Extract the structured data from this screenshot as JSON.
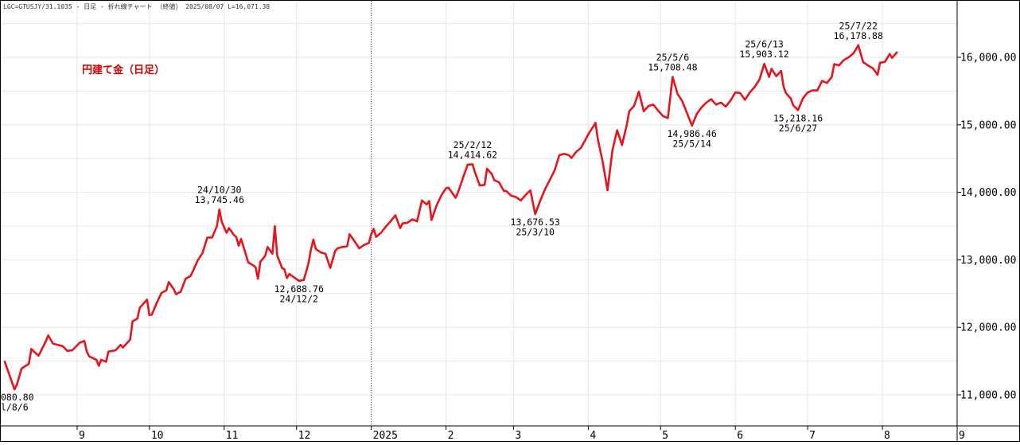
{
  "header": "LGC=GTUSJY/31.1035 - 日足 - 折れ線チャート （終値） 2025/08/07 L=16,071.38",
  "caption": "円建て金（日足）",
  "colors": {
    "line": "#e8141b",
    "caption": "#cc0000",
    "grid": "#e6e6e6",
    "axis": "#000000",
    "divider": "#3a3a3a"
  },
  "chart_data": {
    "type": "line",
    "title": "円建て金（日足）",
    "xlabel": "",
    "ylabel": "",
    "ylim": [
      10700,
      16750
    ],
    "grid": true,
    "y_ticks": [
      11000,
      12000,
      13000,
      14000,
      15000,
      16000
    ],
    "y_tick_labels": [
      "11,000.00",
      "12,000.00",
      "13,000.00",
      "14,000.00",
      "15,000.00",
      "16,000.00"
    ],
    "x_ticks": [
      {
        "label": "9",
        "date": "2024-09-01"
      },
      {
        "label": "10",
        "date": "2024-10-01"
      },
      {
        "label": "11",
        "date": "2024-11-01"
      },
      {
        "label": "12",
        "date": "2024-12-01"
      },
      {
        "label": "2025",
        "date": "2025-01-01"
      },
      {
        "label": "2",
        "date": "2025-02-01"
      },
      {
        "label": "3",
        "date": "2025-03-01"
      },
      {
        "label": "4",
        "date": "2025-04-01"
      },
      {
        "label": "5",
        "date": "2025-05-01"
      },
      {
        "label": "6",
        "date": "2025-06-01"
      },
      {
        "label": "7",
        "date": "2025-07-01"
      },
      {
        "label": "8",
        "date": "2025-08-01"
      },
      {
        "label": "9",
        "date": "2025-09-01"
      }
    ],
    "series": [
      {
        "values": [
          [
            "2024-08-02",
            11490
          ],
          [
            "2024-08-06",
            11080.8
          ],
          [
            "2024-08-07",
            11150
          ],
          [
            "2024-08-09",
            11390
          ],
          [
            "2024-08-12",
            11460
          ],
          [
            "2024-08-13",
            11680
          ],
          [
            "2024-08-15",
            11610
          ],
          [
            "2024-08-16",
            11580
          ],
          [
            "2024-08-19",
            11790
          ],
          [
            "2024-08-20",
            11880
          ],
          [
            "2024-08-22",
            11760
          ],
          [
            "2024-08-26",
            11720
          ],
          [
            "2024-08-28",
            11650
          ],
          [
            "2024-08-30",
            11660
          ],
          [
            "2024-09-02",
            11770
          ],
          [
            "2024-09-04",
            11800
          ],
          [
            "2024-09-05",
            11640
          ],
          [
            "2024-09-06",
            11570
          ],
          [
            "2024-09-09",
            11520
          ],
          [
            "2024-09-10",
            11430
          ],
          [
            "2024-09-11",
            11520
          ],
          [
            "2024-09-13",
            11490
          ],
          [
            "2024-09-14",
            11640
          ],
          [
            "2024-09-17",
            11660
          ],
          [
            "2024-09-19",
            11740
          ],
          [
            "2024-09-20",
            11700
          ],
          [
            "2024-09-23",
            11820
          ],
          [
            "2024-09-24",
            12090
          ],
          [
            "2024-09-26",
            12130
          ],
          [
            "2024-09-27",
            12290
          ],
          [
            "2024-09-30",
            12410
          ],
          [
            "2024-10-01",
            12180
          ],
          [
            "2024-10-02",
            12190
          ],
          [
            "2024-10-04",
            12360
          ],
          [
            "2024-10-06",
            12510
          ],
          [
            "2024-10-08",
            12550
          ],
          [
            "2024-10-09",
            12670
          ],
          [
            "2024-10-11",
            12570
          ],
          [
            "2024-10-12",
            12490
          ],
          [
            "2024-10-14",
            12530
          ],
          [
            "2024-10-16",
            12720
          ],
          [
            "2024-10-18",
            12760
          ],
          [
            "2024-10-19",
            12830
          ],
          [
            "2024-10-21",
            12990
          ],
          [
            "2024-10-23",
            13100
          ],
          [
            "2024-10-25",
            13330
          ],
          [
            "2024-10-27",
            13330
          ],
          [
            "2024-10-29",
            13500
          ],
          [
            "2024-10-30",
            13745.46
          ],
          [
            "2024-10-31",
            13560
          ],
          [
            "2024-11-02",
            13400
          ],
          [
            "2024-11-03",
            13470
          ],
          [
            "2024-11-05",
            13370
          ],
          [
            "2024-11-06",
            13340
          ],
          [
            "2024-11-07",
            13210
          ],
          [
            "2024-11-08",
            13310
          ],
          [
            "2024-11-11",
            12960
          ],
          [
            "2024-11-13",
            12920
          ],
          [
            "2024-11-14",
            12890
          ],
          [
            "2024-11-15",
            12720
          ],
          [
            "2024-11-16",
            12970
          ],
          [
            "2024-11-18",
            13060
          ],
          [
            "2024-11-19",
            13190
          ],
          [
            "2024-11-21",
            13090
          ],
          [
            "2024-11-22",
            13500
          ],
          [
            "2024-11-23",
            13060
          ],
          [
            "2024-11-25",
            12880
          ],
          [
            "2024-11-26",
            12860
          ],
          [
            "2024-11-27",
            12730
          ],
          [
            "2024-11-28",
            12790
          ],
          [
            "2024-12-02",
            12688.76
          ],
          [
            "2024-12-04",
            12700
          ],
          [
            "2024-12-06",
            12950
          ],
          [
            "2024-12-07",
            13160
          ],
          [
            "2024-12-08",
            13300
          ],
          [
            "2024-12-09",
            13160
          ],
          [
            "2024-12-11",
            13110
          ],
          [
            "2024-12-13",
            13090
          ],
          [
            "2024-12-15",
            12880
          ],
          [
            "2024-12-17",
            13130
          ],
          [
            "2024-12-18",
            13170
          ],
          [
            "2024-12-20",
            13190
          ],
          [
            "2024-12-22",
            13200
          ],
          [
            "2024-12-23",
            13380
          ],
          [
            "2024-12-25",
            13280
          ],
          [
            "2024-12-27",
            13170
          ],
          [
            "2024-12-29",
            13220
          ],
          [
            "2024-12-31",
            13250
          ],
          [
            "2025-01-01",
            13380
          ],
          [
            "2025-01-02",
            13460
          ],
          [
            "2025-01-03",
            13340
          ],
          [
            "2025-01-05",
            13400
          ],
          [
            "2025-01-07",
            13490
          ],
          [
            "2025-01-09",
            13570
          ],
          [
            "2025-01-11",
            13660
          ],
          [
            "2025-01-13",
            13470
          ],
          [
            "2025-01-14",
            13540
          ],
          [
            "2025-01-16",
            13550
          ],
          [
            "2025-01-18",
            13600
          ],
          [
            "2025-01-20",
            13570
          ],
          [
            "2025-01-22",
            13880
          ],
          [
            "2025-01-24",
            13820
          ],
          [
            "2025-01-25",
            13870
          ],
          [
            "2025-01-26",
            13590
          ],
          [
            "2025-01-28",
            13800
          ],
          [
            "2025-01-30",
            13950
          ],
          [
            "2025-02-01",
            14060
          ],
          [
            "2025-02-02",
            14070
          ],
          [
            "2025-02-03",
            14020
          ],
          [
            "2025-02-05",
            13920
          ],
          [
            "2025-02-06",
            14000
          ],
          [
            "2025-02-08",
            14210
          ],
          [
            "2025-02-10",
            14410
          ],
          [
            "2025-02-12",
            14414.62
          ],
          [
            "2025-02-13",
            14300
          ],
          [
            "2025-02-15",
            14100
          ],
          [
            "2025-02-17",
            14110
          ],
          [
            "2025-02-18",
            14350
          ],
          [
            "2025-02-20",
            14270
          ],
          [
            "2025-02-21",
            14180
          ],
          [
            "2025-02-23",
            14150
          ],
          [
            "2025-02-25",
            14020
          ],
          [
            "2025-02-26",
            14020
          ],
          [
            "2025-02-28",
            13950
          ],
          [
            "2025-03-02",
            13930
          ],
          [
            "2025-03-04",
            13880
          ],
          [
            "2025-03-06",
            13960
          ],
          [
            "2025-03-08",
            14030
          ],
          [
            "2025-03-10",
            13676.53
          ],
          [
            "2025-03-12",
            13870
          ],
          [
            "2025-03-14",
            14040
          ],
          [
            "2025-03-16",
            14180
          ],
          [
            "2025-03-18",
            14320
          ],
          [
            "2025-03-20",
            14550
          ],
          [
            "2025-03-22",
            14570
          ],
          [
            "2025-03-24",
            14550
          ],
          [
            "2025-03-25",
            14510
          ],
          [
            "2025-03-27",
            14600
          ],
          [
            "2025-03-29",
            14660
          ],
          [
            "2025-04-01",
            14860
          ],
          [
            "2025-04-03",
            14970
          ],
          [
            "2025-04-04",
            15030
          ],
          [
            "2025-04-05",
            14780
          ],
          [
            "2025-04-07",
            14450
          ],
          [
            "2025-04-09",
            14030
          ],
          [
            "2025-04-11",
            14620
          ],
          [
            "2025-04-13",
            14920
          ],
          [
            "2025-04-15",
            14700
          ],
          [
            "2025-04-17",
            15000
          ],
          [
            "2025-04-18",
            15200
          ],
          [
            "2025-04-20",
            15280
          ],
          [
            "2025-04-22",
            15490
          ],
          [
            "2025-04-24",
            15200
          ],
          [
            "2025-04-26",
            15280
          ],
          [
            "2025-04-28",
            15300
          ],
          [
            "2025-04-30",
            15210
          ],
          [
            "2025-05-02",
            15130
          ],
          [
            "2025-05-04",
            15100
          ],
          [
            "2025-05-06",
            15708.48
          ],
          [
            "2025-05-08",
            15460
          ],
          [
            "2025-05-10",
            15350
          ],
          [
            "2025-05-12",
            15170
          ],
          [
            "2025-05-14",
            14986.46
          ],
          [
            "2025-05-16",
            15160
          ],
          [
            "2025-05-18",
            15260
          ],
          [
            "2025-05-20",
            15330
          ],
          [
            "2025-05-22",
            15380
          ],
          [
            "2025-05-24",
            15300
          ],
          [
            "2025-05-26",
            15330
          ],
          [
            "2025-05-28",
            15270
          ],
          [
            "2025-05-30",
            15360
          ],
          [
            "2025-06-01",
            15480
          ],
          [
            "2025-06-03",
            15470
          ],
          [
            "2025-06-05",
            15370
          ],
          [
            "2025-06-07",
            15480
          ],
          [
            "2025-06-09",
            15560
          ],
          [
            "2025-06-11",
            15670
          ],
          [
            "2025-06-13",
            15903.12
          ],
          [
            "2025-06-15",
            15710
          ],
          [
            "2025-06-16",
            15830
          ],
          [
            "2025-06-18",
            15720
          ],
          [
            "2025-06-20",
            15800
          ],
          [
            "2025-06-21",
            15570
          ],
          [
            "2025-06-22",
            15470
          ],
          [
            "2025-06-24",
            15390
          ],
          [
            "2025-06-25",
            15290
          ],
          [
            "2025-06-27",
            15218.16
          ],
          [
            "2025-06-29",
            15390
          ],
          [
            "2025-07-01",
            15480
          ],
          [
            "2025-07-03",
            15510
          ],
          [
            "2025-07-05",
            15510
          ],
          [
            "2025-07-07",
            15650
          ],
          [
            "2025-07-09",
            15620
          ],
          [
            "2025-07-11",
            15710
          ],
          [
            "2025-07-12",
            15900
          ],
          [
            "2025-07-14",
            15880
          ],
          [
            "2025-07-16",
            15960
          ],
          [
            "2025-07-18",
            16000
          ],
          [
            "2025-07-20",
            16060
          ],
          [
            "2025-07-22",
            16178.88
          ],
          [
            "2025-07-24",
            15930
          ],
          [
            "2025-07-26",
            15880
          ],
          [
            "2025-07-28",
            15840
          ],
          [
            "2025-07-30",
            15740
          ],
          [
            "2025-07-31",
            15920
          ],
          [
            "2025-08-02",
            15930
          ],
          [
            "2025-08-04",
            16050
          ],
          [
            "2025-08-05",
            15990
          ],
          [
            "2025-08-07",
            16071.38
          ]
        ]
      }
    ],
    "annotations": [
      {
        "date": "2024-08-06",
        "value": 11080.8,
        "lines": [
          "080.80",
          "l/8/6"
        ],
        "place": "below"
      },
      {
        "date": "2024-10-30",
        "value": 13745.46,
        "lines": [
          "24/10/30",
          "13,745.46"
        ],
        "place": "above"
      },
      {
        "date": "2024-12-02",
        "value": 12688.76,
        "lines": [
          "12,688.76",
          "24/12/2"
        ],
        "place": "below"
      },
      {
        "date": "2025-02-12",
        "value": 14414.62,
        "lines": [
          "25/2/12",
          "14,414.62"
        ],
        "place": "above"
      },
      {
        "date": "2025-03-10",
        "value": 13676.53,
        "lines": [
          "13,676.53",
          "25/3/10"
        ],
        "place": "below"
      },
      {
        "date": "2025-05-06",
        "value": 15708.48,
        "lines": [
          "25/5/6",
          "15,708.48"
        ],
        "place": "above"
      },
      {
        "date": "2025-05-14",
        "value": 14986.46,
        "lines": [
          "14,986.46",
          "25/5/14"
        ],
        "place": "below"
      },
      {
        "date": "2025-06-13",
        "value": 15903.12,
        "lines": [
          "25/6/13",
          "15,903.12"
        ],
        "place": "above"
      },
      {
        "date": "2025-06-27",
        "value": 15218.16,
        "lines": [
          "15,218.16",
          "25/6/27"
        ],
        "place": "below"
      },
      {
        "date": "2025-07-22",
        "value": 16178.88,
        "lines": [
          "25/7/22",
          "16,178.88"
        ],
        "place": "above"
      }
    ],
    "divider_date": "2025-01-01"
  }
}
